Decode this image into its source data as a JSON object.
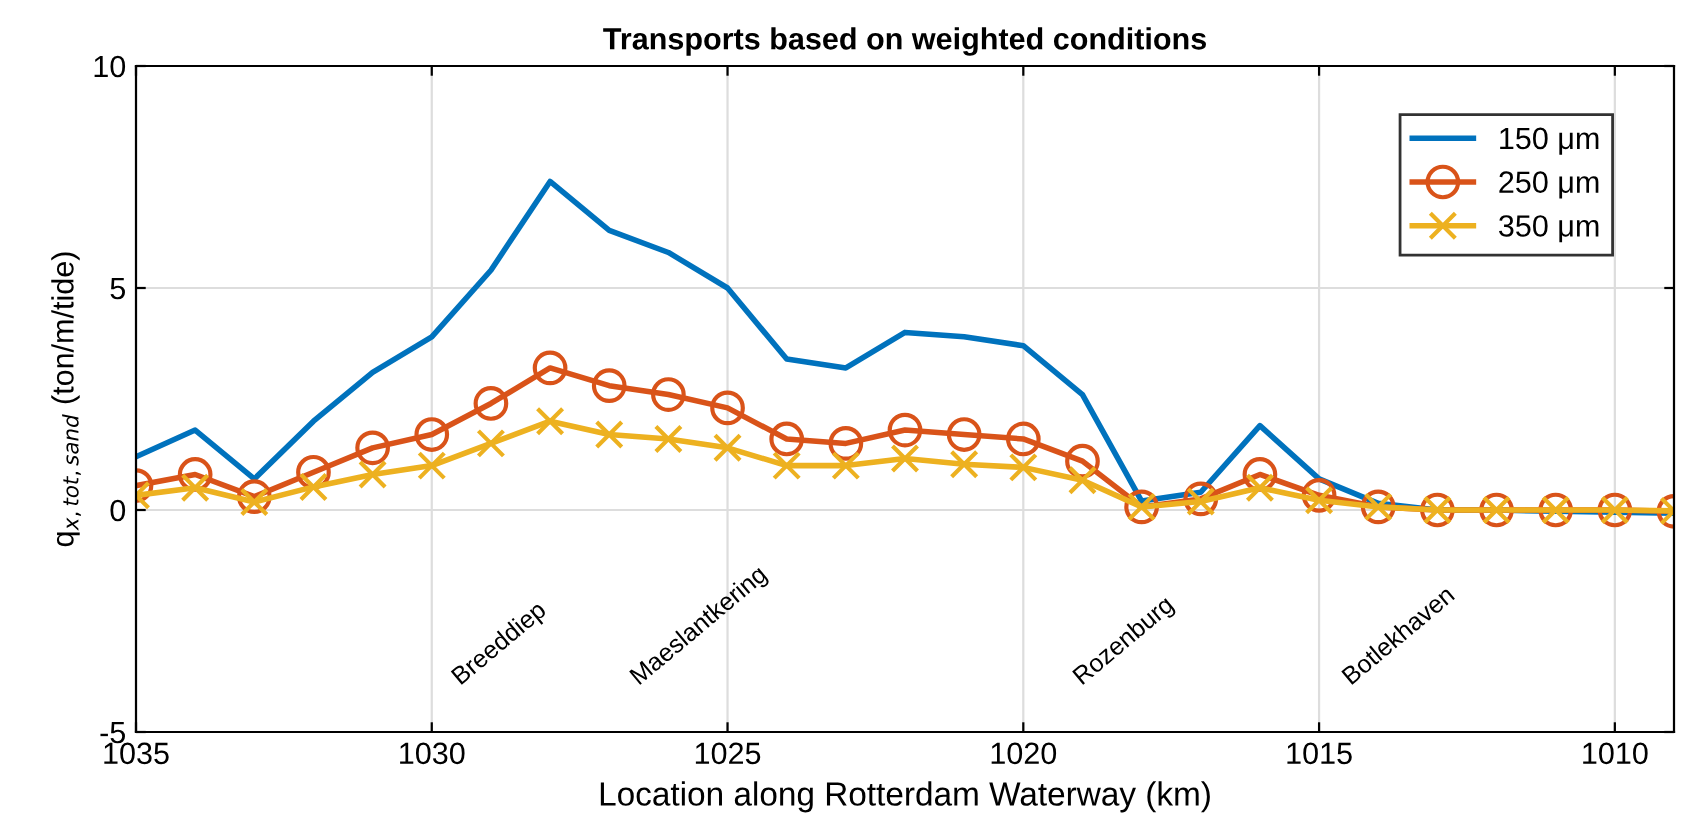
{
  "chart_data": {
    "type": "line",
    "title": "Transports based on weighted conditions",
    "xlabel": "Location along Rotterdam Waterway (km)",
    "ylabel": "q$_{x,tot,sand}$ (ton/m/tide)",
    "x": [
      1035,
      1034,
      1033,
      1032,
      1031,
      1030,
      1029,
      1028,
      1027,
      1026,
      1025,
      1024,
      1023,
      1022,
      1021,
      1020,
      1019,
      1018,
      1017,
      1016,
      1015,
      1014,
      1013,
      1012,
      1011,
      1010,
      1009
    ],
    "series": [
      {
        "name": "150 μm",
        "color": "#0072bd",
        "marker": "none",
        "values": [
          1.2,
          1.8,
          0.7,
          2.0,
          3.1,
          3.9,
          5.4,
          7.4,
          6.3,
          5.8,
          5.0,
          3.4,
          3.2,
          4.0,
          3.9,
          3.7,
          2.6,
          0.2,
          0.4,
          1.9,
          0.7,
          0.15,
          0.0,
          0.0,
          -0.03,
          -0.05,
          -0.07
        ]
      },
      {
        "name": "250 μm",
        "color": "#d95319",
        "marker": "circle",
        "values": [
          0.55,
          0.8,
          0.3,
          0.85,
          1.4,
          1.7,
          2.4,
          3.2,
          2.8,
          2.6,
          2.3,
          1.6,
          1.5,
          1.8,
          1.7,
          1.6,
          1.1,
          0.07,
          0.25,
          0.8,
          0.33,
          0.07,
          0.0,
          0.0,
          0.0,
          0.0,
          -0.03
        ]
      },
      {
        "name": "350 μm",
        "color": "#edb120",
        "marker": "cross",
        "values": [
          0.33,
          0.5,
          0.18,
          0.52,
          0.8,
          1.0,
          1.5,
          2.0,
          1.7,
          1.6,
          1.4,
          1.0,
          1.0,
          1.16,
          1.03,
          0.96,
          0.67,
          0.07,
          0.19,
          0.5,
          0.22,
          0.07,
          0.0,
          0.0,
          0.0,
          0.0,
          -0.02
        ]
      }
    ],
    "xlim": [
      1035,
      1009
    ],
    "xticks": [
      1035,
      1030,
      1025,
      1020,
      1015,
      1010
    ],
    "ylim": [
      -5,
      10
    ],
    "yticks": [
      -5,
      0,
      5,
      10
    ],
    "grid": true,
    "legend": "top right",
    "line_style": "solid",
    "annotations": [
      "Breeddiep",
      "Maeslantkering",
      "Rozenburg",
      "Botlekhaven"
    ]
  }
}
